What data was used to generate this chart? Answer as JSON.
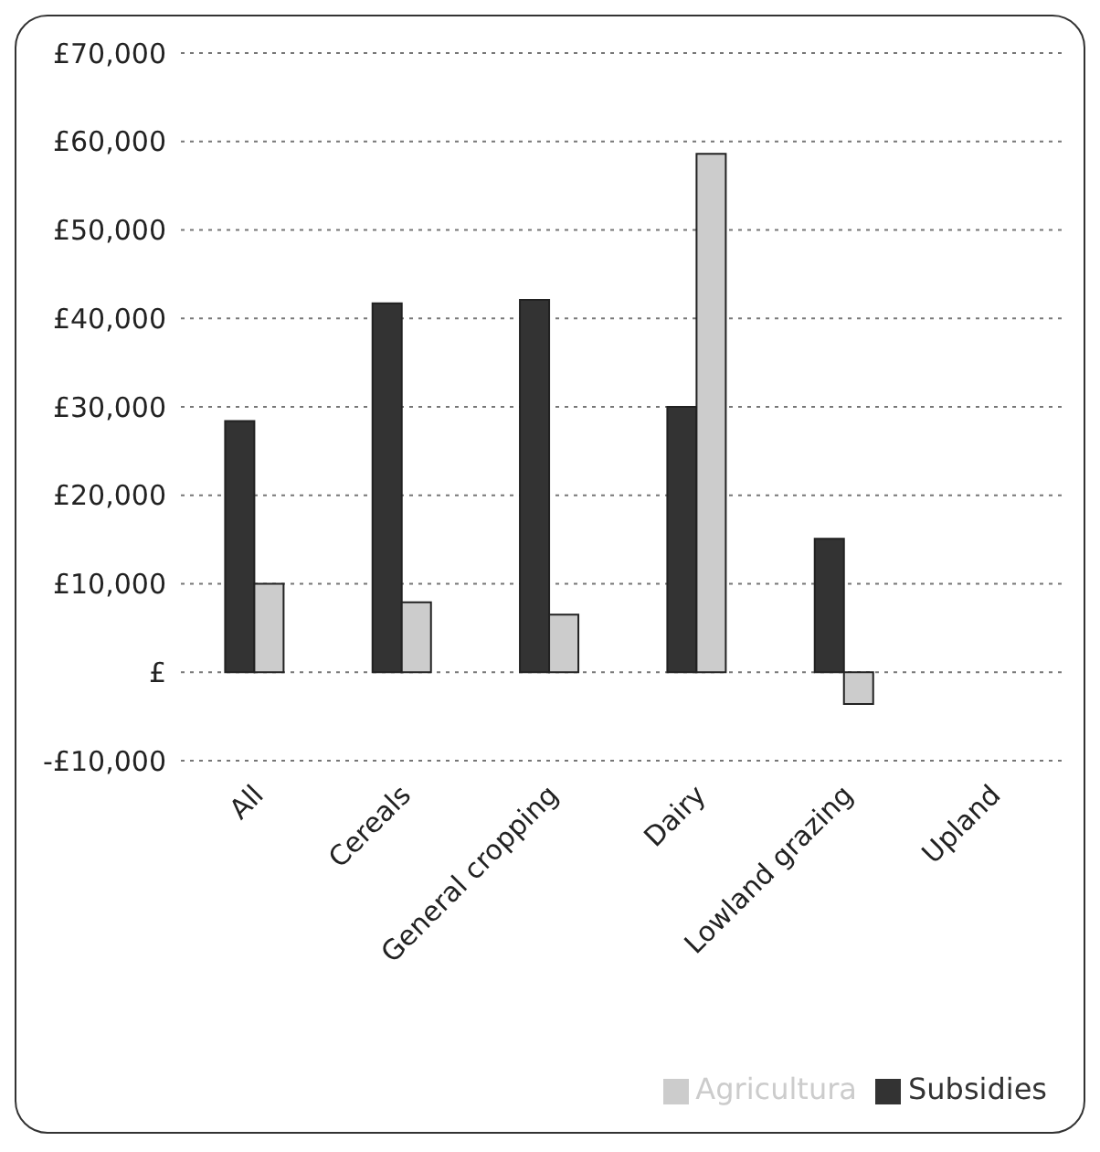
{
  "chart_data": {
    "type": "bar",
    "categories": [
      "All",
      "Cereals",
      "General cropping",
      "Dairy",
      "Lowland grazing",
      "Upland"
    ],
    "series": [
      {
        "name": "Subsidies",
        "color": "#333333",
        "values": [
          28400,
          41700,
          42100,
          30000,
          15100,
          null
        ]
      },
      {
        "name": "Agricultura",
        "color": "#cccccc",
        "values": [
          10000,
          7900,
          6500,
          58600,
          -3600,
          null
        ]
      }
    ],
    "ylim": [
      -10000,
      70000
    ],
    "yticks": [
      {
        "value": -10000,
        "label": "-£10,000"
      },
      {
        "value": 0,
        "label": "£"
      },
      {
        "value": 10000,
        "label": "£10,000"
      },
      {
        "value": 20000,
        "label": "£20,000"
      },
      {
        "value": 30000,
        "label": "£30,000"
      },
      {
        "value": 40000,
        "label": "£40,000"
      },
      {
        "value": 50000,
        "label": "£50,000"
      },
      {
        "value": 60000,
        "label": "£60,000"
      },
      {
        "value": 70000,
        "label": "£70,000"
      }
    ],
    "grid": "y",
    "legend": "bottom right"
  }
}
